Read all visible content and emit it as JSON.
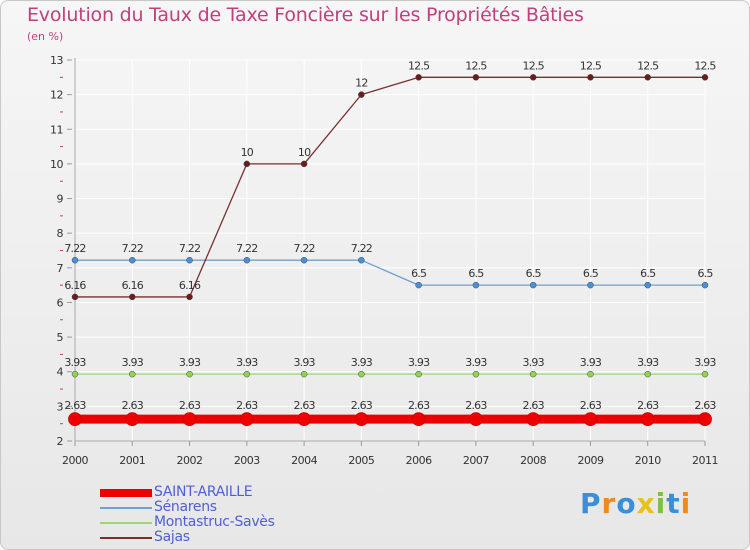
{
  "header": {
    "title": "Evolution du Taux de Taxe Foncière sur les Propriétés Bâties",
    "unit": "(en %)"
  },
  "colors": {
    "title": "#c0407e",
    "legend_text": "#4f5fd5",
    "grid": "#ffffff",
    "axis_text": "#333333"
  },
  "chart_data": {
    "type": "line",
    "title": "Evolution du Taux de Taxe Foncière sur les Propriétés Bâties",
    "ylabel": "(en %)",
    "xlabel": "",
    "x": [
      "2000",
      "2001",
      "2002",
      "2003",
      "2004",
      "2005",
      "2006",
      "2007",
      "2008",
      "2009",
      "2010",
      "2011"
    ],
    "ylim": [
      2,
      13
    ],
    "yticks": [
      "2",
      "3",
      "4",
      "5",
      "6",
      "7",
      "8",
      "9",
      "10",
      "11",
      "12",
      "13"
    ],
    "grid": true,
    "series": [
      {
        "name": "SAINT-ARAILLE",
        "color": "#ee0000",
        "thick": true,
        "values": [
          2.63,
          2.63,
          2.63,
          2.63,
          2.63,
          2.63,
          2.63,
          2.63,
          2.63,
          2.63,
          2.63,
          2.63
        ],
        "labels": [
          "2.63",
          "2.63",
          "2.63",
          "2.63",
          "2.63",
          "2.63",
          "2.63",
          "2.63",
          "2.63",
          "2.63",
          "2.63",
          "2.63"
        ]
      },
      {
        "name": "Sénarens",
        "color": "#6fa0d0",
        "dot": "#4a90d9",
        "values": [
          7.22,
          7.22,
          7.22,
          7.22,
          7.22,
          7.22,
          6.5,
          6.5,
          6.5,
          6.5,
          6.5,
          6.5
        ],
        "labels": [
          "7.22",
          "7.22",
          "7.22",
          "7.22",
          "7.22",
          "7.22",
          "6.5",
          "6.5",
          "6.5",
          "6.5",
          "6.5",
          "6.5"
        ]
      },
      {
        "name": "Montastruc-Savès",
        "color": "#9ed477",
        "dot": "#8ed64c",
        "values": [
          3.93,
          3.93,
          3.93,
          3.93,
          3.93,
          3.93,
          3.93,
          3.93,
          3.93,
          3.93,
          3.93,
          3.93
        ],
        "labels": [
          "3.93",
          "3.93",
          "3.93",
          "3.93",
          "3.93",
          "3.93",
          "3.93",
          "3.93",
          "3.93",
          "3.93",
          "3.93",
          "3.93"
        ]
      },
      {
        "name": "Sajas",
        "color": "#7a3030",
        "dot": "#6b1c1c",
        "values": [
          6.16,
          6.16,
          6.16,
          10,
          10,
          12,
          12.5,
          12.5,
          12.5,
          12.5,
          12.5,
          12.5
        ],
        "labels": [
          "6.16",
          "6.16",
          "6.16",
          "10",
          "10",
          "12",
          "12.5",
          "12.5",
          "12.5",
          "12.5",
          "12.5",
          "12.5"
        ]
      }
    ]
  },
  "legend": [
    {
      "label": "SAINT-ARAILLE",
      "color": "#ee0000"
    },
    {
      "label": "Sénarens",
      "color": "#6fa0d0"
    },
    {
      "label": "Montastruc-Savès",
      "color": "#9ed477"
    },
    {
      "label": "Sajas",
      "color": "#7a3030"
    }
  ],
  "logo": {
    "text": "Proxiti",
    "letters": [
      "P",
      "r",
      "o",
      "x",
      "i",
      "t",
      "i"
    ],
    "letter_colors": [
      "#3a8fd8",
      "#f08a1c",
      "#3a8fd8",
      "#e8c21a",
      "#7cc242",
      "#3a8fd8",
      "#f08a1c"
    ]
  }
}
